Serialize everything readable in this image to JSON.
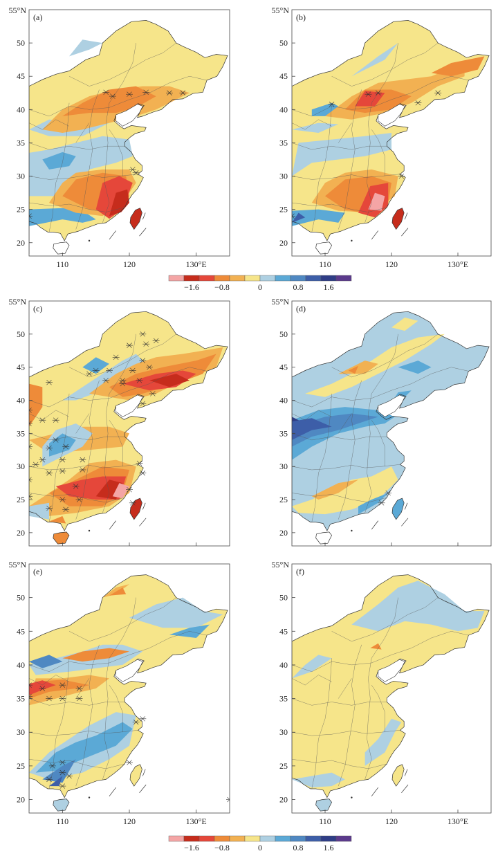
{
  "axes": {
    "lat_ticks": [
      "20",
      "25",
      "30",
      "35",
      "40",
      "45",
      "50"
    ],
    "lat_top_label": "55°N",
    "lon_ticks": [
      "110",
      "120",
      "130°E"
    ]
  },
  "panels": [
    {
      "id": "a",
      "label": "(a)",
      "show_lon": true
    },
    {
      "id": "b",
      "label": "(b)",
      "show_lon": true
    },
    {
      "id": "c",
      "label": "(c)",
      "show_lon": false
    },
    {
      "id": "d",
      "label": "(d)",
      "show_lon": false
    },
    {
      "id": "e",
      "label": "(e)",
      "show_lon": true
    },
    {
      "id": "f",
      "label": "(f)",
      "show_lon": true
    }
  ],
  "colorbar": {
    "colors": [
      "#f4a5a5",
      "#c62c1c",
      "#e5473a",
      "#ee8b39",
      "#f2b152",
      "#f6e58a",
      "#aed0e2",
      "#5ba9d6",
      "#4f88c2",
      "#3d5ea8",
      "#2f3d86",
      "#5b3a8c"
    ],
    "tick_labels": [
      "−1.6",
      "−0.8",
      "0",
      "0.8",
      "1.6"
    ]
  },
  "legend": {
    "colors": {
      "red_dark": "#c62c1c",
      "red": "#e5473a",
      "orange": "#ee8b39",
      "orange_light": "#f2b152",
      "yellow": "#f6e58a",
      "blue_pale": "#aed0e2",
      "blue": "#5ba9d6",
      "blue_mid": "#4f88c2",
      "blue_dark": "#3d5ea8",
      "navy": "#2f3d86",
      "pink": "#f4a5a5"
    }
  }
}
